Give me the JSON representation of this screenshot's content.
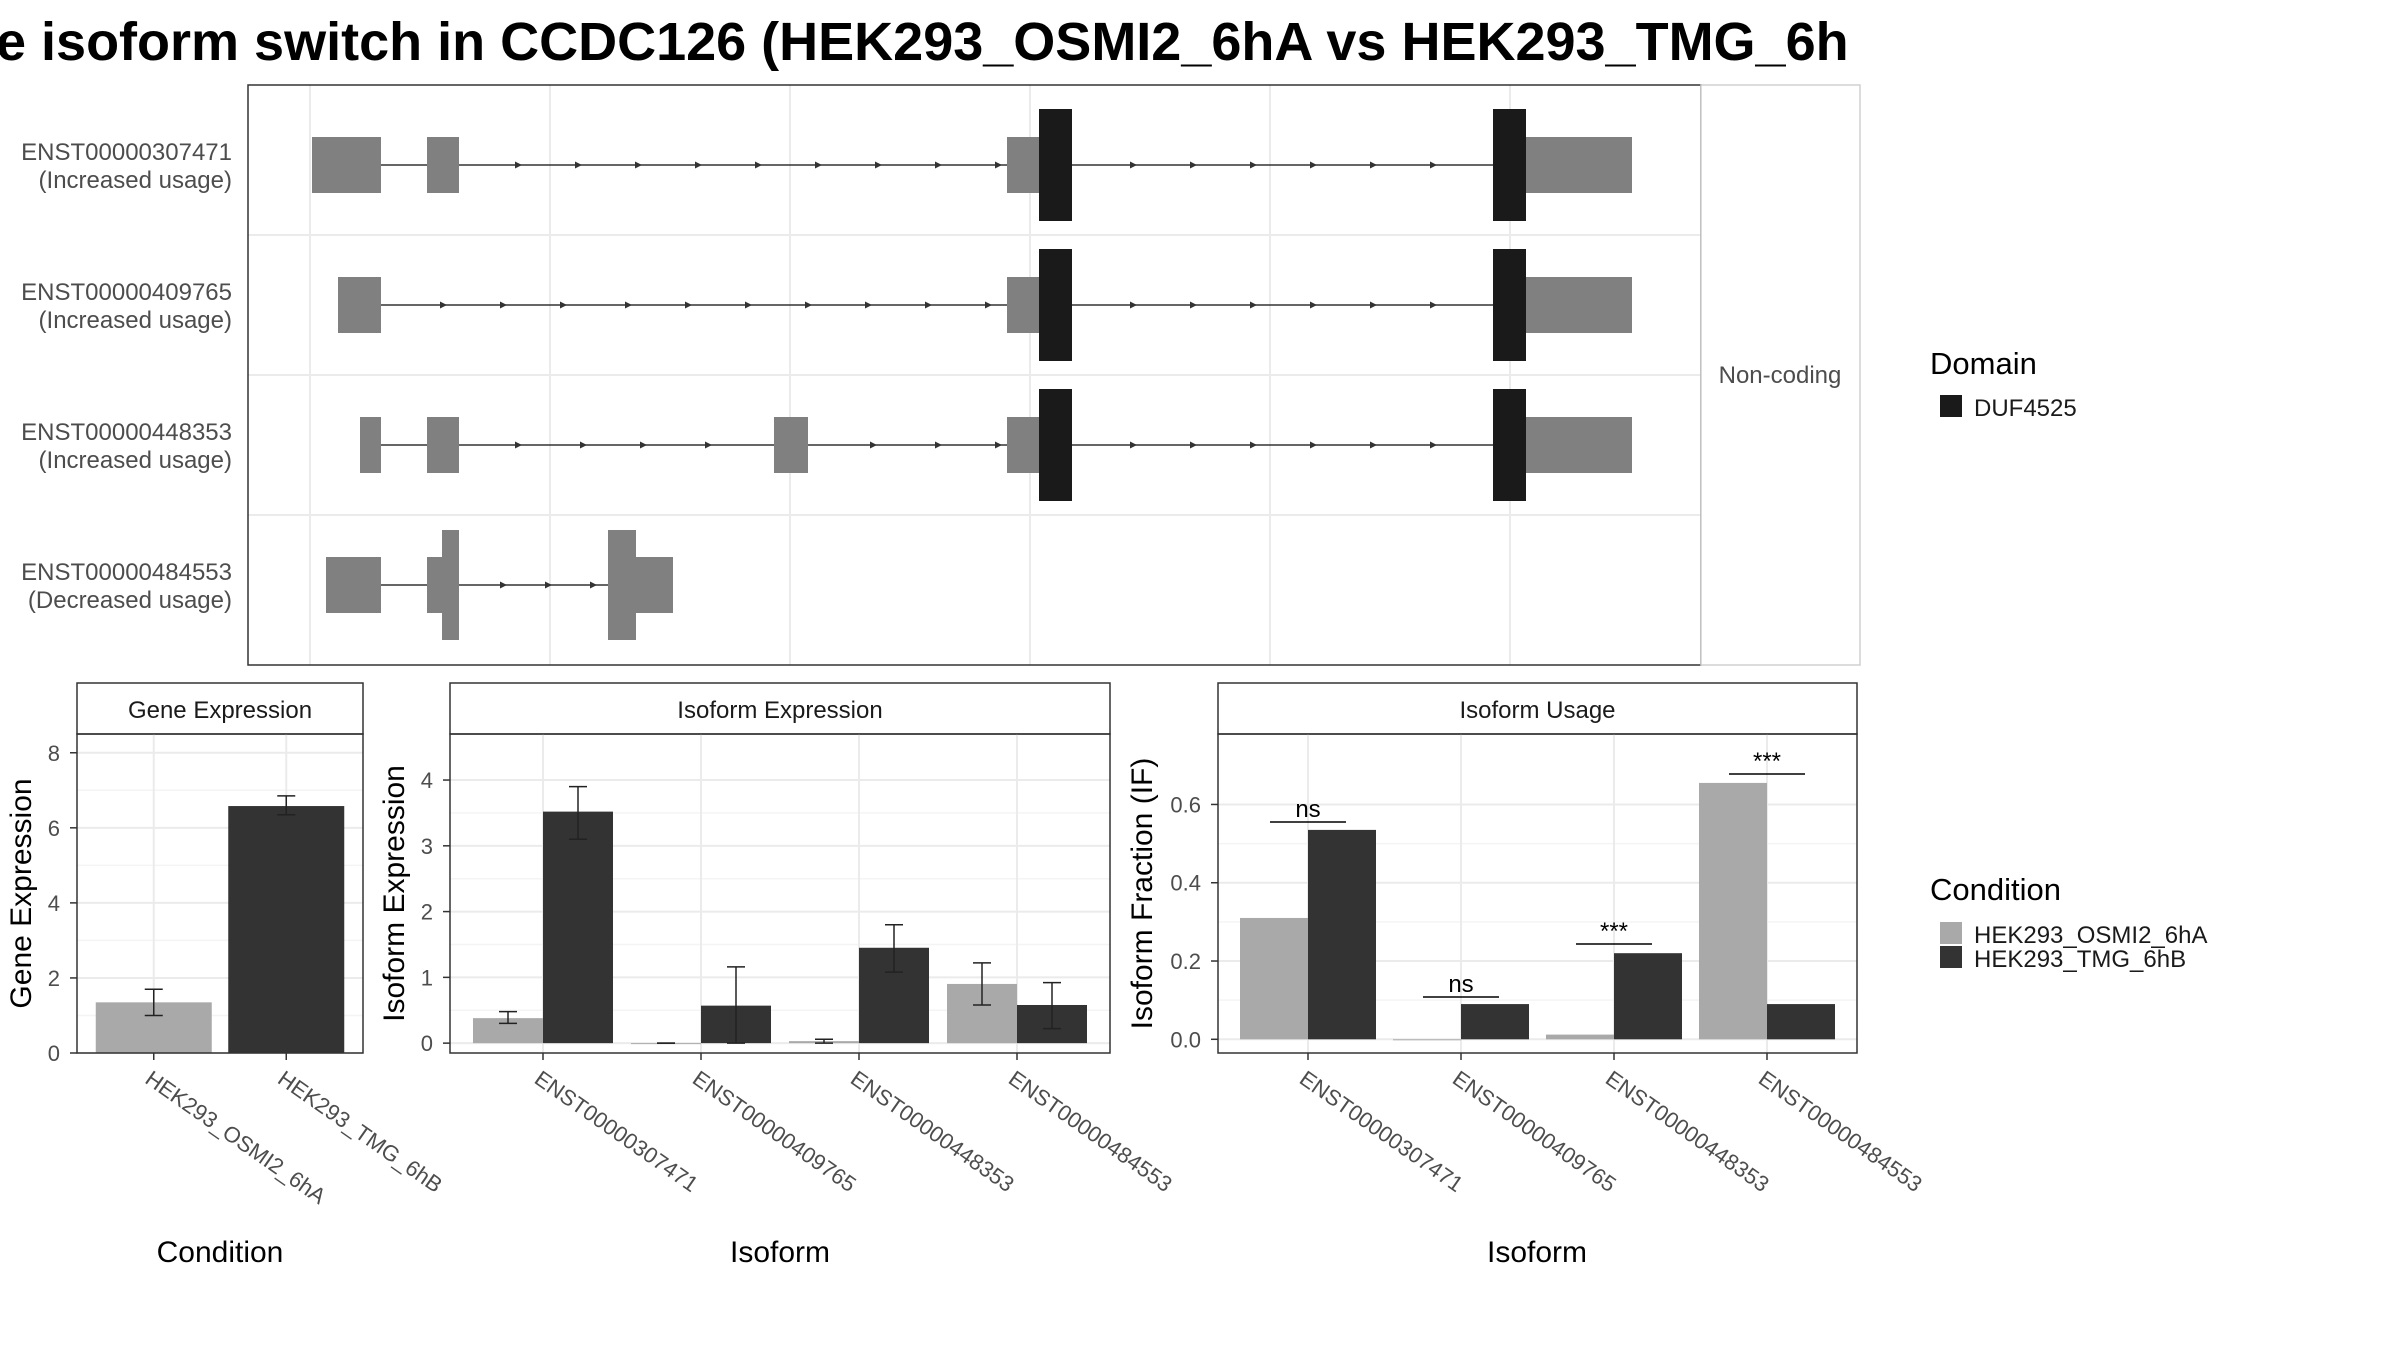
{
  "title": "e isoform switch in CCDC126 (HEK293_OSMI2_6hA vs HEK293_TMG_6h",
  "colors": {
    "utr": "#808080",
    "cds_domain": "#1a1a1a",
    "cond_a": "#a9a9a9",
    "cond_b": "#333333",
    "grid": "#ebebeb",
    "panel_border": "#333333"
  },
  "structure_panel": {
    "side_label": "Non-coding",
    "transcripts": [
      {
        "id": "ENST00000307471",
        "usage": "(Increased usage)"
      },
      {
        "id": "ENST00000409765",
        "usage": "(Increased usage)"
      },
      {
        "id": "ENST00000448353",
        "usage": "(Increased usage)"
      },
      {
        "id": "ENST00000484553",
        "usage": "(Decreased usage)"
      }
    ]
  },
  "legend_domain": {
    "title": "Domain",
    "items": [
      {
        "label": "DUF4525",
        "color": "#1a1a1a"
      }
    ]
  },
  "legend_condition": {
    "title": "Condition",
    "items": [
      {
        "label": "HEK293_OSMI2_6hA",
        "color": "#a9a9a9"
      },
      {
        "label": "HEK293_TMG_6hB",
        "color": "#333333"
      }
    ]
  },
  "chart_data": [
    {
      "type": "bar",
      "title": "Gene Expression",
      "xlabel": "Condition",
      "ylabel": "Gene Expression",
      "ylim": [
        0,
        8.5
      ],
      "yticks": [
        "0",
        "2",
        "4",
        "6",
        "8"
      ],
      "categories": [
        "HEK293_OSMI2_6hA",
        "HEK293_TMG_6hB"
      ],
      "values": [
        1.35,
        6.58
      ],
      "error_low": [
        1.0,
        6.35
      ],
      "error_high": [
        1.7,
        6.85
      ],
      "grid": true
    },
    {
      "type": "bar",
      "title": "Isoform Expression",
      "xlabel": "Isoform",
      "ylabel": "Isoform Expression",
      "ylim": [
        -0.15,
        4.7
      ],
      "yticks": [
        "0",
        "1",
        "2",
        "3",
        "4"
      ],
      "categories": [
        "ENST00000307471",
        "ENST00000409765",
        "ENST00000448353",
        "ENST00000484553"
      ],
      "series": [
        {
          "name": "HEK293_OSMI2_6hA",
          "values": [
            0.38,
            0.0,
            0.03,
            0.9
          ],
          "error_low": [
            0.3,
            0.0,
            0.0,
            0.58
          ],
          "error_high": [
            0.48,
            0.0,
            0.06,
            1.22
          ]
        },
        {
          "name": "HEK293_TMG_6hB",
          "values": [
            3.52,
            0.57,
            1.45,
            0.58
          ],
          "error_low": [
            3.1,
            0.0,
            1.08,
            0.22
          ],
          "error_high": [
            3.9,
            1.16,
            1.8,
            0.92
          ]
        }
      ],
      "grid": true
    },
    {
      "type": "bar",
      "title": "Isoform Usage",
      "xlabel": "Isoform",
      "ylabel": "Isoform Fraction (IF)",
      "ylim": [
        -0.035,
        0.78
      ],
      "yticks": [
        "0.0",
        "0.2",
        "0.4",
        "0.6"
      ],
      "categories": [
        "ENST00000307471",
        "ENST00000409765",
        "ENST00000448353",
        "ENST00000484553"
      ],
      "series": [
        {
          "name": "HEK293_OSMI2_6hA",
          "values": [
            0.31,
            0.0,
            0.012,
            0.655
          ]
        },
        {
          "name": "HEK293_TMG_6hB",
          "values": [
            0.535,
            0.09,
            0.22,
            0.09
          ]
        }
      ],
      "significance": [
        "ns",
        "ns",
        "***",
        "***"
      ],
      "grid": true
    }
  ]
}
